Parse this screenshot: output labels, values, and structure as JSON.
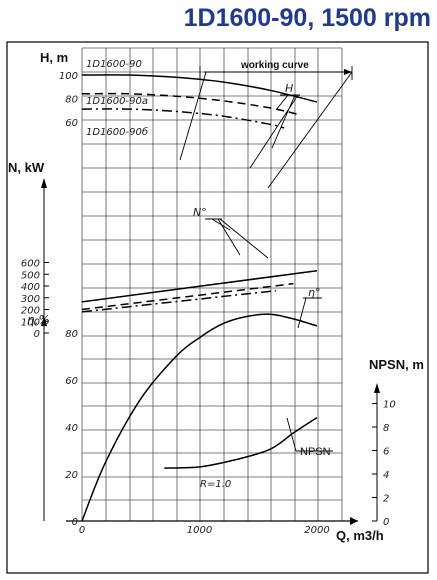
{
  "title": "1D1600-90, 1500 rpm",
  "chart_data": {
    "type": "line",
    "title": "1D1600-90, 1500 rpm",
    "xlabel": "Q, m3/h",
    "x_ticks": [
      "0",
      "1000",
      "2000"
    ],
    "xlim": [
      0,
      2000
    ],
    "panels": {
      "head": {
        "ylabel": "H, m",
        "ticks": [
          "100",
          "80",
          "60"
        ],
        "working_curve_label": "working curve",
        "curve_marker": "H",
        "series": [
          {
            "name": "1D1600-90",
            "style": "solid",
            "x": [
              0,
              400,
              800,
              1200,
              1600,
              2000
            ],
            "y": [
              100,
              100,
              98,
              94,
              87,
              77
            ]
          },
          {
            "name": "1D1600-90a",
            "style": "dashed",
            "x": [
              0,
              400,
              800,
              1200,
              1600,
              1860
            ],
            "y": [
              84,
              84,
              82,
              78,
              72,
              66
            ]
          },
          {
            "name": "1D1600-90б",
            "style": "dash-dot",
            "x": [
              0,
              400,
              800,
              1200,
              1600,
              1720
            ],
            "y": [
              71,
              71,
              69,
              65,
              58,
              55
            ]
          }
        ]
      },
      "power": {
        "ylabel": "N, kW",
        "ticks": [
          "600",
          "500",
          "400",
          "300",
          "200",
          "100",
          "0"
        ],
        "curve_marker": "N°",
        "series": [
          {
            "name": "1D1600-90",
            "style": "solid",
            "x": [
              0,
              2000
            ],
            "y": [
              265,
              530
            ]
          },
          {
            "name": "1D1600-90a",
            "style": "dashed",
            "x": [
              0,
              1800
            ],
            "y": [
              200,
              420
            ]
          },
          {
            "name": "1D1600-90б",
            "style": "dash-dot",
            "x": [
              0,
              1650
            ],
            "y": [
              180,
              360
            ]
          }
        ]
      },
      "efficiency": {
        "ylabel": "η,%",
        "ticks": [
          "80",
          "60",
          "40",
          "20",
          "0"
        ],
        "curve_marker": "η°",
        "series": [
          {
            "name": "η",
            "style": "solid",
            "x": [
              0,
              200,
              500,
              800,
              1000,
              1200,
              1400,
              1600,
              1800,
              2000
            ],
            "y": [
              0,
              25,
              52,
              70,
              78,
              84,
              87,
              88,
              86,
              83
            ]
          }
        ]
      },
      "npsh": {
        "ylabel": "NPSN, m",
        "ticks": [
          "10",
          "8",
          "6",
          "4",
          "2",
          "0"
        ],
        "curve_marker": "NPSN",
        "annotation": "R=1.0",
        "series": [
          {
            "name": "NPSN",
            "style": "solid",
            "x": [
              700,
              1000,
              1300,
              1600,
              1800,
              2000
            ],
            "y": [
              4.5,
              4.6,
              5.2,
              6.1,
              7.5,
              8.8
            ]
          }
        ]
      }
    }
  }
}
